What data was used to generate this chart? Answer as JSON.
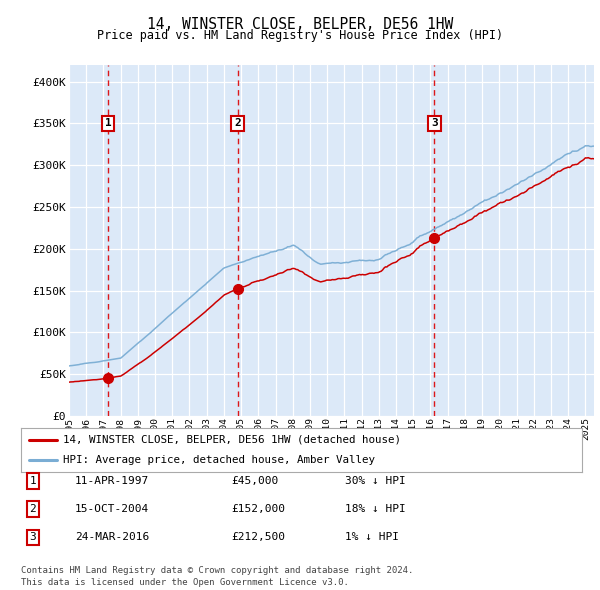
{
  "title": "14, WINSTER CLOSE, BELPER, DE56 1HW",
  "subtitle": "Price paid vs. HM Land Registry's House Price Index (HPI)",
  "ylim": [
    0,
    420000
  ],
  "yticks": [
    0,
    50000,
    100000,
    150000,
    200000,
    250000,
    300000,
    350000,
    400000
  ],
  "ytick_labels": [
    "£0",
    "£50K",
    "£100K",
    "£150K",
    "£200K",
    "£250K",
    "£300K",
    "£350K",
    "£400K"
  ],
  "plot_bg_color": "#dce9f8",
  "grid_color": "#ffffff",
  "hpi_color": "#7aadd4",
  "price_color": "#cc0000",
  "vline_color": "#dd0000",
  "transactions": [
    {
      "date": 1997.28,
      "price": 45000,
      "label": "1"
    },
    {
      "date": 2004.79,
      "price": 152000,
      "label": "2"
    },
    {
      "date": 2016.23,
      "price": 212500,
      "label": "3"
    }
  ],
  "legend_entries": [
    {
      "label": "14, WINSTER CLOSE, BELPER, DE56 1HW (detached house)",
      "color": "#cc0000"
    },
    {
      "label": "HPI: Average price, detached house, Amber Valley",
      "color": "#7aadd4"
    }
  ],
  "table_rows": [
    {
      "num": "1",
      "date": "11-APR-1997",
      "price": "£45,000",
      "hpi": "30% ↓ HPI"
    },
    {
      "num": "2",
      "date": "15-OCT-2004",
      "price": "£152,000",
      "hpi": "18% ↓ HPI"
    },
    {
      "num": "3",
      "date": "24-MAR-2016",
      "price": "£212,500",
      "hpi": "1% ↓ HPI"
    }
  ],
  "footnote": "Contains HM Land Registry data © Crown copyright and database right 2024.\nThis data is licensed under the Open Government Licence v3.0.",
  "xstart": 1995.0,
  "xend": 2025.5
}
